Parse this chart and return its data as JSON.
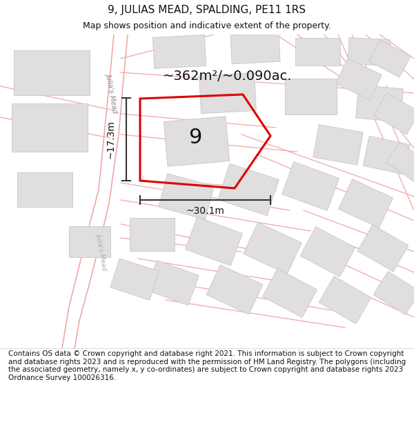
{
  "title": "9, JULIAS MEAD, SPALDING, PE11 1RS",
  "subtitle": "Map shows position and indicative extent of the property.",
  "footer": "Contains OS data © Crown copyright and database right 2021. This information is subject to Crown copyright and database rights 2023 and is reproduced with the permission of HM Land Registry. The polygons (including the associated geometry, namely x, y co-ordinates) are subject to Crown copyright and database rights 2023 Ordnance Survey 100026316.",
  "area_label": "~362m²/~0.090ac.",
  "number_label": "9",
  "dim_width": "~30.1m",
  "dim_height": "~17.3m",
  "street_label_upper": "Julia's Mead",
  "street_label_lower": "Julia's-Mead",
  "map_bg": "#f7f3f3",
  "building_color": "#e0dede",
  "building_edge": "#c8c8c8",
  "highlight_color": "#dd0000",
  "road_line_color": "#f0a8a8",
  "dim_line_color": "#333333",
  "title_fontsize": 11,
  "subtitle_fontsize": 9,
  "footer_fontsize": 7.5,
  "number_fontsize": 22,
  "area_fontsize": 14
}
